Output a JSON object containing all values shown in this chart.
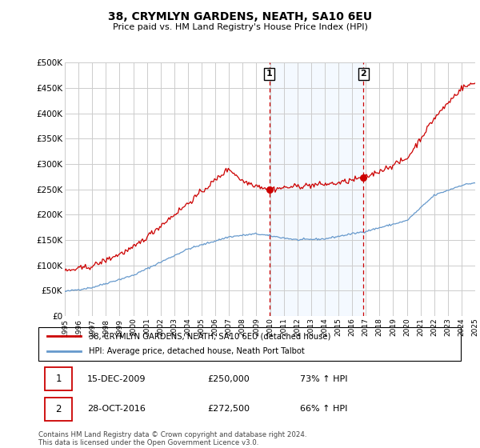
{
  "title": "38, CRYMLYN GARDENS, NEATH, SA10 6EU",
  "subtitle": "Price paid vs. HM Land Registry's House Price Index (HPI)",
  "xlim": [
    1995,
    2025
  ],
  "ylim": [
    0,
    500000
  ],
  "yticks": [
    0,
    50000,
    100000,
    150000,
    200000,
    250000,
    300000,
    350000,
    400000,
    450000,
    500000
  ],
  "ytick_labels": [
    "£0",
    "£50K",
    "£100K",
    "£150K",
    "£200K",
    "£250K",
    "£300K",
    "£350K",
    "£400K",
    "£450K",
    "£500K"
  ],
  "xticks": [
    1995,
    1996,
    1997,
    1998,
    1999,
    2000,
    2001,
    2002,
    2003,
    2004,
    2005,
    2006,
    2007,
    2008,
    2009,
    2010,
    2011,
    2012,
    2013,
    2014,
    2015,
    2016,
    2017,
    2018,
    2019,
    2020,
    2021,
    2022,
    2023,
    2024,
    2025
  ],
  "sale1_x": 2009.96,
  "sale1_y": 250000,
  "sale2_x": 2016.83,
  "sale2_y": 272500,
  "sale1_label": "1",
  "sale2_label": "2",
  "legend_line1": "38, CRYMLYN GARDENS, NEATH, SA10 6EU (detached house)",
  "legend_line2": "HPI: Average price, detached house, Neath Port Talbot",
  "annotation1_num": "1",
  "annotation1_date": "15-DEC-2009",
  "annotation1_price": "£250,000",
  "annotation1_hpi": "73% ↑ HPI",
  "annotation2_num": "2",
  "annotation2_date": "28-OCT-2016",
  "annotation2_price": "£272,500",
  "annotation2_hpi": "66% ↑ HPI",
  "footer": "Contains HM Land Registry data © Crown copyright and database right 2024.\nThis data is licensed under the Open Government Licence v3.0.",
  "line_color_red": "#cc0000",
  "line_color_blue": "#6699cc",
  "shade_color": "#ddeeff",
  "bg_color": "#ffffff",
  "grid_color": "#cccccc"
}
